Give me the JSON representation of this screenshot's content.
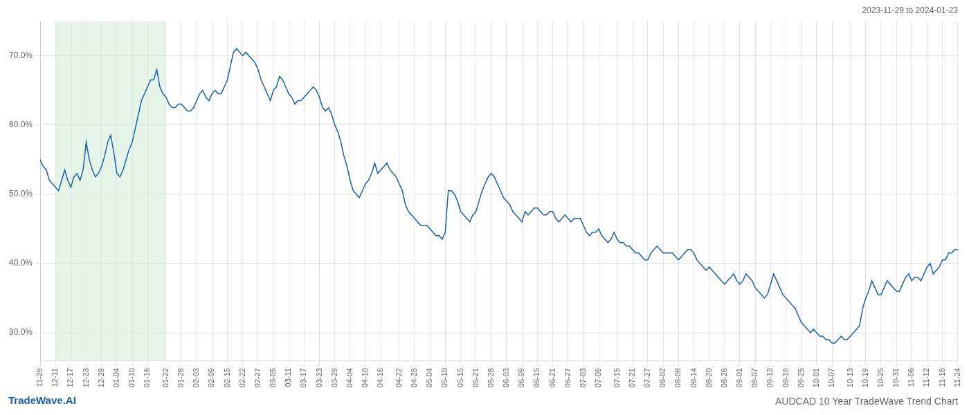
{
  "chart_data": {
    "type": "line",
    "title": "AUDCAD 10 Year TradeWave Trend Chart",
    "subtitle": "2023-11-29 to 2024-01-23",
    "annotations": [
      "TradeWave.AI"
    ],
    "color": "#1a5fa8",
    "grid": true,
    "ylim": [
      26,
      75
    ],
    "yticks": [
      {
        "value": 30,
        "label": "30.0%"
      },
      {
        "value": 40,
        "label": "40.0%"
      },
      {
        "value": 50,
        "label": "50.0%"
      },
      {
        "value": 60,
        "label": "60.0%"
      },
      {
        "value": 70,
        "label": "70.0%"
      }
    ],
    "highlight": {
      "from": "12-11",
      "to": "01-22",
      "color": "#c8e6c9"
    },
    "categories": [
      "11-29",
      null,
      null,
      null,
      null,
      "12-11",
      null,
      null,
      null,
      null,
      "12-17",
      null,
      null,
      null,
      null,
      "12-23",
      null,
      null,
      null,
      null,
      "12-29",
      null,
      null,
      null,
      null,
      "01-04",
      null,
      null,
      null,
      null,
      "01-10",
      null,
      null,
      null,
      null,
      "01-16",
      null,
      null,
      null,
      null,
      null,
      "01-22",
      null,
      null,
      null,
      null,
      "01-28",
      null,
      null,
      null,
      null,
      "02-03",
      null,
      null,
      null,
      null,
      "02-09",
      null,
      null,
      null,
      null,
      "02-15",
      null,
      null,
      null,
      null,
      "02-22",
      null,
      null,
      null,
      null,
      "02-27",
      null,
      null,
      null,
      null,
      "03-05",
      null,
      null,
      null,
      null,
      "03-11",
      null,
      null,
      null,
      null,
      "03-17",
      null,
      null,
      null,
      null,
      "03-23",
      null,
      null,
      null,
      null,
      "03-29",
      null,
      null,
      null,
      null,
      "04-04",
      null,
      null,
      null,
      null,
      "04-10",
      null,
      null,
      null,
      null,
      "04-16",
      null,
      null,
      null,
      null,
      null,
      "04-22",
      null,
      null,
      null,
      null,
      "04-28",
      null,
      null,
      null,
      null,
      "05-04",
      null,
      null,
      null,
      null,
      "05-10",
      null,
      null,
      null,
      null,
      "05-15",
      null,
      null,
      null,
      null,
      "05-21",
      null,
      null,
      null,
      null,
      "05-28",
      null,
      null,
      null,
      null,
      "06-03",
      null,
      null,
      null,
      null,
      "06-09",
      null,
      null,
      null,
      null,
      "06-15",
      null,
      null,
      null,
      null,
      "06-21",
      null,
      null,
      null,
      null,
      "06-27",
      null,
      null,
      null,
      null,
      "07-03",
      null,
      null,
      null,
      null,
      "07-09",
      null,
      null,
      null,
      null,
      null,
      "07-15",
      null,
      null,
      null,
      null,
      "07-21",
      null,
      null,
      null,
      null,
      "07-27",
      null,
      null,
      null,
      null,
      "08-02",
      null,
      null,
      null,
      null,
      "08-08",
      null,
      null,
      null,
      null,
      "08-14",
      null,
      null,
      null,
      null,
      "08-20",
      null,
      null,
      null,
      null,
      "08-26",
      null,
      null,
      null,
      null,
      "09-01",
      null,
      null,
      null,
      null,
      "09-07",
      null,
      null,
      null,
      null,
      "09-13",
      null,
      null,
      null,
      null,
      "09-19",
      null,
      null,
      null,
      null,
      "09-25",
      null,
      null,
      null,
      null,
      "10-01",
      null,
      null,
      null,
      null,
      "10-07",
      null,
      null,
      null,
      null,
      null,
      "10-13",
      null,
      null,
      null,
      null,
      "10-19",
      null,
      null,
      null,
      null,
      "10-25",
      null,
      null,
      null,
      null,
      "10-31",
      null,
      null,
      null,
      null,
      "11-06",
      null,
      null,
      null,
      null,
      "11-12",
      null,
      null,
      null,
      null,
      "11-18",
      null,
      null,
      null,
      null,
      "11-24"
    ],
    "values": [
      55.0,
      54.0,
      53.5,
      52.0,
      51.5,
      51.0,
      50.5,
      52.0,
      53.5,
      52.0,
      51.0,
      52.5,
      53.0,
      52.0,
      53.5,
      57.5,
      55.0,
      53.5,
      52.5,
      53.0,
      54.0,
      55.5,
      57.5,
      58.5,
      56.0,
      53.0,
      52.5,
      53.5,
      55.0,
      56.5,
      57.5,
      59.5,
      61.5,
      63.5,
      64.5,
      65.5,
      66.5,
      66.5,
      68.0,
      65.5,
      64.5,
      64.0,
      63.0,
      62.5,
      62.5,
      63.0,
      63.0,
      62.5,
      62.0,
      62.0,
      62.5,
      63.5,
      64.5,
      65.0,
      64.0,
      63.5,
      64.5,
      65.0,
      64.5,
      64.5,
      65.5,
      66.5,
      68.5,
      70.5,
      71.0,
      70.5,
      70.0,
      70.5,
      70.0,
      69.5,
      69.0,
      68.0,
      66.5,
      65.5,
      64.5,
      63.5,
      65.0,
      65.5,
      67.0,
      66.5,
      65.5,
      64.5,
      64.0,
      63.0,
      63.5,
      63.5,
      64.0,
      64.5,
      65.0,
      65.5,
      65.0,
      64.0,
      62.5,
      62.0,
      62.5,
      61.5,
      60.0,
      59.0,
      57.5,
      55.5,
      54.0,
      52.0,
      50.5,
      50.0,
      49.5,
      50.5,
      51.5,
      52.0,
      53.0,
      54.5,
      53.0,
      53.5,
      54.0,
      54.5,
      53.5,
      53.0,
      52.5,
      51.5,
      50.5,
      48.5,
      47.5,
      47.0,
      46.5,
      46.0,
      45.5,
      45.5,
      45.5,
      45.0,
      44.5,
      44.0,
      44.0,
      43.5,
      44.5,
      50.5,
      50.5,
      50.0,
      49.0,
      47.5,
      47.0,
      46.5,
      46.0,
      47.0,
      47.5,
      49.0,
      50.5,
      51.5,
      52.5,
      53.0,
      52.5,
      51.5,
      50.5,
      49.5,
      49.0,
      48.5,
      47.5,
      47.0,
      46.5,
      46.0,
      47.5,
      47.0,
      47.5,
      48.0,
      48.0,
      47.5,
      47.0,
      47.0,
      47.5,
      47.5,
      46.5,
      46.0,
      46.5,
      47.0,
      46.5,
      46.0,
      46.5,
      46.5,
      46.5,
      45.5,
      44.5,
      44.0,
      44.5,
      44.5,
      45.0,
      44.0,
      43.5,
      43.0,
      43.5,
      44.5,
      43.5,
      43.0,
      43.0,
      42.5,
      42.5,
      42.0,
      41.5,
      41.5,
      41.0,
      40.5,
      40.5,
      41.5,
      42.0,
      42.5,
      42.0,
      41.5,
      41.5,
      41.5,
      41.5,
      41.0,
      40.5,
      41.0,
      41.5,
      42.0,
      42.0,
      41.5,
      40.5,
      40.0,
      39.5,
      39.0,
      39.5,
      39.0,
      38.5,
      38.0,
      37.5,
      37.0,
      37.5,
      38.0,
      38.5,
      37.5,
      37.0,
      37.5,
      38.5,
      38.0,
      37.5,
      36.5,
      36.0,
      35.5,
      35.0,
      35.5,
      37.0,
      38.5,
      37.5,
      36.5,
      35.5,
      35.0,
      34.5,
      34.0,
      33.5,
      32.5,
      31.5,
      31.0,
      30.5,
      30.0,
      30.5,
      30.0,
      29.5,
      29.5,
      29.0,
      29.0,
      28.5,
      28.5,
      29.0,
      29.5,
      29.0,
      29.0,
      29.5,
      30.0,
      30.5,
      31.0,
      33.5,
      35.0,
      36.0,
      37.5,
      36.5,
      35.5,
      35.5,
      36.5,
      37.5,
      37.0,
      36.5,
      36.0,
      36.0,
      37.0,
      38.0,
      38.5,
      37.5,
      38.0,
      38.0,
      37.5,
      38.5,
      39.5,
      40.0,
      38.5,
      39.0,
      39.5,
      40.5,
      40.5,
      41.5,
      41.5,
      42.0,
      42.0
    ]
  }
}
